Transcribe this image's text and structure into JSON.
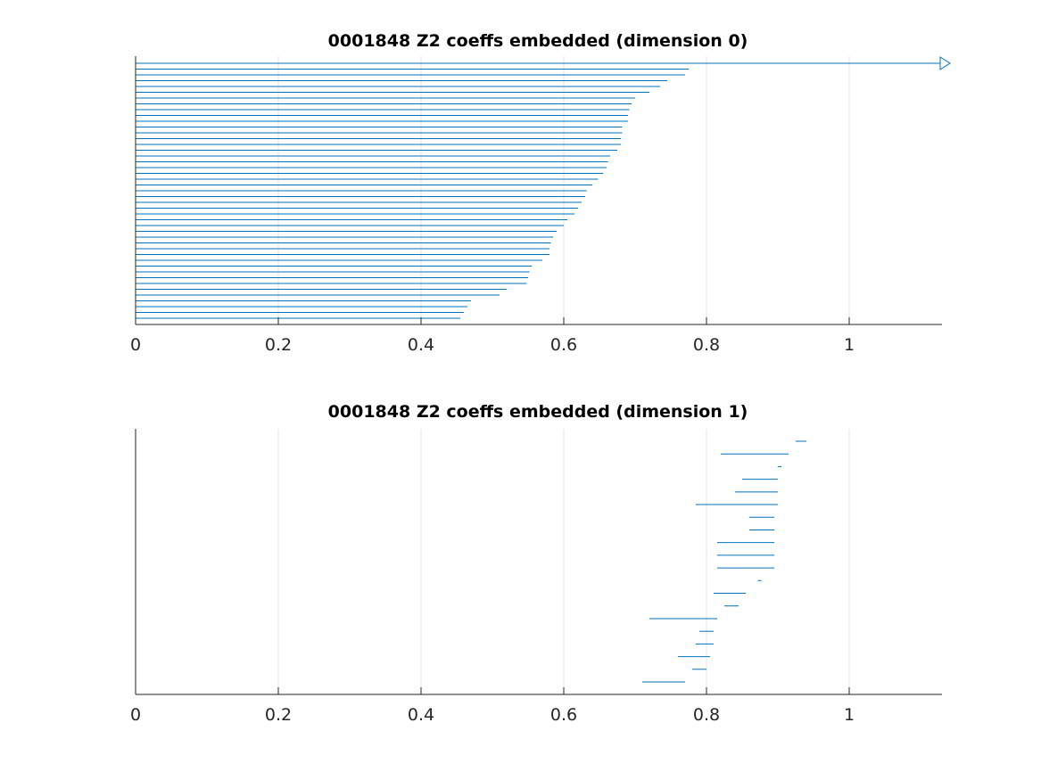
{
  "chart_data": [
    {
      "type": "barcode",
      "title": "0001848 Z2 coeffs embedded (dimension 0)",
      "xlim": [
        0,
        1.13
      ],
      "xticks": [
        0,
        0.2,
        0.4,
        0.6,
        0.8,
        1
      ],
      "xtick_labels": [
        "0",
        "0.2",
        "0.4",
        "0.6",
        "0.8",
        "1"
      ],
      "xgrid": true,
      "ygrid": false,
      "color": "#0072BD",
      "infinite_bar": {
        "birth": 0,
        "death": "Infinity"
      },
      "intervals": [
        [
          0,
          0.775
        ],
        [
          0,
          0.77
        ],
        [
          0,
          0.745
        ],
        [
          0,
          0.735
        ],
        [
          0,
          0.72
        ],
        [
          0,
          0.7
        ],
        [
          0,
          0.695
        ],
        [
          0,
          0.692
        ],
        [
          0,
          0.69
        ],
        [
          0,
          0.69
        ],
        [
          0,
          0.682
        ],
        [
          0,
          0.682
        ],
        [
          0,
          0.68
        ],
        [
          0,
          0.68
        ],
        [
          0,
          0.675
        ],
        [
          0,
          0.665
        ],
        [
          0,
          0.662
        ],
        [
          0,
          0.66
        ],
        [
          0,
          0.655
        ],
        [
          0,
          0.648
        ],
        [
          0,
          0.64
        ],
        [
          0,
          0.632
        ],
        [
          0,
          0.63
        ],
        [
          0,
          0.625
        ],
        [
          0,
          0.62
        ],
        [
          0,
          0.615
        ],
        [
          0,
          0.605
        ],
        [
          0,
          0.6
        ],
        [
          0,
          0.59
        ],
        [
          0,
          0.585
        ],
        [
          0,
          0.582
        ],
        [
          0,
          0.58
        ],
        [
          0,
          0.58
        ],
        [
          0,
          0.57
        ],
        [
          0,
          0.555
        ],
        [
          0,
          0.552
        ],
        [
          0,
          0.55
        ],
        [
          0,
          0.548
        ],
        [
          0,
          0.52
        ],
        [
          0,
          0.51
        ],
        [
          0,
          0.47
        ],
        [
          0,
          0.465
        ],
        [
          0,
          0.46
        ],
        [
          0,
          0.455
        ]
      ]
    },
    {
      "type": "barcode",
      "title": "0001848 Z2 coeffs embedded (dimension 1)",
      "xlim": [
        0,
        1.13
      ],
      "xticks": [
        0,
        0.2,
        0.4,
        0.6,
        0.8,
        1
      ],
      "xtick_labels": [
        "0",
        "0.2",
        "0.4",
        "0.6",
        "0.8",
        "1"
      ],
      "xgrid": true,
      "ygrid": false,
      "color": "#0072BD",
      "intervals": [
        [
          0.925,
          0.94
        ],
        [
          0.82,
          0.915
        ],
        [
          0.9,
          0.905
        ],
        [
          0.85,
          0.9
        ],
        [
          0.84,
          0.9
        ],
        [
          0.785,
          0.9
        ],
        [
          0.86,
          0.895
        ],
        [
          0.86,
          0.895
        ],
        [
          0.815,
          0.895
        ],
        [
          0.815,
          0.895
        ],
        [
          0.815,
          0.895
        ],
        [
          0.872,
          0.877
        ],
        [
          0.81,
          0.855
        ],
        [
          0.825,
          0.845
        ],
        [
          0.72,
          0.815
        ],
        [
          0.79,
          0.81
        ],
        [
          0.785,
          0.81
        ],
        [
          0.76,
          0.805
        ],
        [
          0.78,
          0.8
        ],
        [
          0.71,
          0.77
        ]
      ]
    }
  ]
}
